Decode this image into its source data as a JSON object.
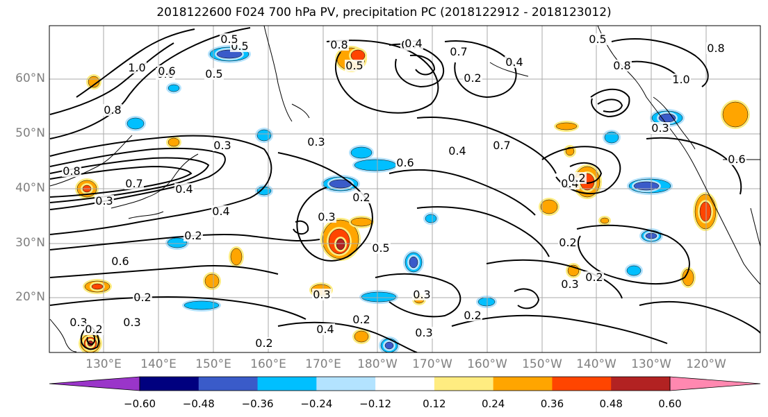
{
  "title": "2018122600 F024 700 hPa PV, precipitation PC (2018122912 - 2018123012)",
  "lat_labels": [
    "60°N",
    "50°N",
    "40°N",
    "30°N",
    "20°N"
  ],
  "lon_labels": [
    "130°E",
    "140°E",
    "150°E",
    "160°E",
    "170°E",
    "180°W",
    "170°W",
    "160°W",
    "150°W",
    "140°W",
    "130°W",
    "120°W"
  ],
  "colorbar": {
    "ticks": [
      "−0.60",
      "−0.48",
      "−0.36",
      "−0.24",
      "−0.12",
      "0.12",
      "0.24",
      "0.36",
      "0.48",
      "0.60"
    ],
    "colors": [
      "#9a35c9",
      "#00007f",
      "#3a5bc9",
      "#00bfff",
      "#b3e3ff",
      "#ffffff",
      "#ffec80",
      "#ffa500",
      "#ff4500",
      "#b22222",
      "#ff88b0"
    ]
  },
  "contour_labels": [
    "0.8",
    "0.5",
    "0.5",
    "0.5",
    "0.8",
    "1.0",
    "0.6",
    "0.8",
    "0.4",
    "0.8",
    "0.7",
    "0.7",
    "0.3",
    "0.3",
    "0.6",
    "0.4",
    "0.7",
    "0.8",
    "0.7",
    "0.4",
    "0.3",
    "0.4",
    "0.2",
    "0.6",
    "0.5",
    "0.2",
    "0.3",
    "0.4",
    "0.3",
    "0.2",
    "0.2",
    "0.3",
    "0.4",
    "0.2",
    "0.3",
    "0.2",
    "0.2",
    "0.3",
    "0.2",
    "0.3",
    "0.2",
    "0.3",
    "0.4",
    "0.2",
    "0.3",
    "0.5",
    "0.6",
    "1.0",
    "0.6",
    "0.5",
    "0.2"
  ]
}
